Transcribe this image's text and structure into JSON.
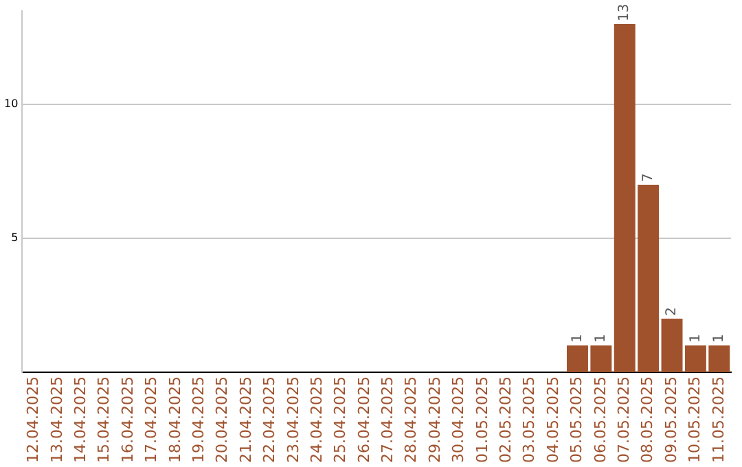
{
  "chart_data": {
    "type": "bar",
    "categories": [
      "12.04.2025",
      "13.04.2025",
      "14.04.2025",
      "15.04.2025",
      "16.04.2025",
      "17.04.2025",
      "18.04.2025",
      "19.04.2025",
      "20.04.2025",
      "21.04.2025",
      "22.04.2025",
      "23.04.2025",
      "24.04.2025",
      "25.04.2025",
      "26.04.2025",
      "27.04.2025",
      "28.04.2025",
      "29.04.2025",
      "30.04.2025",
      "01.05.2025",
      "02.05.2025",
      "03.05.2025",
      "04.05.2025",
      "05.05.2025",
      "06.05.2025",
      "07.05.2025",
      "08.05.2025",
      "09.05.2025",
      "10.05.2025",
      "11.05.2025"
    ],
    "values": [
      0,
      0,
      0,
      0,
      0,
      0,
      0,
      0,
      0,
      0,
      0,
      0,
      0,
      0,
      0,
      0,
      0,
      0,
      0,
      0,
      0,
      0,
      0,
      1,
      1,
      13,
      7,
      2,
      1,
      1
    ],
    "value_labels": [
      null,
      null,
      null,
      null,
      null,
      null,
      null,
      null,
      null,
      null,
      null,
      null,
      null,
      null,
      null,
      null,
      null,
      null,
      null,
      null,
      null,
      null,
      null,
      "1",
      "1",
      "13",
      "7",
      "2",
      "1",
      "1"
    ],
    "color": "#a0522d",
    "ylim": [
      0,
      13.5
    ],
    "yticks": [
      5,
      10
    ],
    "grid": "y"
  }
}
